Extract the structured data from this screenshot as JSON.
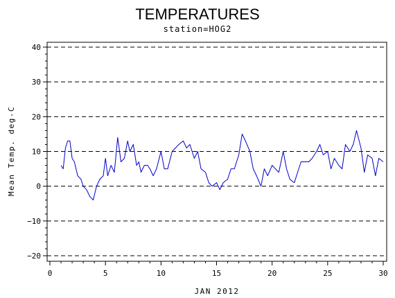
{
  "chart_data": {
    "type": "line",
    "title": "TEMPERATURES",
    "subtitle": "station=HOG2",
    "xlabel": "JAN 2012",
    "ylabel": "Mean Temp. deg-C",
    "xlim": [
      0,
      30
    ],
    "ylim": [
      -20,
      40
    ],
    "x_ticks": [
      0,
      5,
      10,
      15,
      20,
      25,
      30
    ],
    "y_ticks": [
      -20,
      -10,
      0,
      10,
      20,
      30,
      40
    ],
    "grid": "horizontal-dashed",
    "line_color": "#0000cc",
    "series": [
      {
        "x": [
          1.0,
          1.2,
          1.4,
          1.6,
          1.8,
          2.0,
          2.2,
          2.5,
          2.8,
          3.0,
          3.3,
          3.6,
          3.9,
          4.2,
          4.5,
          4.8,
          5.0,
          5.2,
          5.5,
          5.8,
          6.1,
          6.4,
          6.7,
          7.0,
          7.2,
          7.5,
          7.8,
          8.0,
          8.2,
          8.5,
          8.8,
          9.0,
          9.3,
          9.6,
          10.0,
          10.3,
          10.6,
          11.0,
          11.3,
          11.6,
          12.0,
          12.3,
          12.6,
          13.0,
          13.3,
          13.6,
          14.0,
          14.3,
          14.6,
          15.0,
          15.3,
          15.6,
          16.0,
          16.3,
          16.6,
          17.0,
          17.3,
          17.6,
          18.0,
          18.3,
          18.6,
          19.0,
          19.3,
          19.6,
          20.0,
          20.3,
          20.6,
          21.0,
          21.3,
          21.6,
          22.0,
          22.3,
          22.6,
          23.0,
          23.3,
          23.6,
          24.0,
          24.3,
          24.6,
          25.0,
          25.3,
          25.6,
          26.0,
          26.3,
          26.6,
          27.0,
          27.3,
          27.6,
          28.0,
          28.3,
          28.6,
          29.0,
          29.3,
          29.6,
          30.0
        ],
        "values": [
          6,
          5,
          11,
          13,
          13,
          8,
          7,
          3,
          2,
          0,
          -1,
          -3,
          -4,
          0,
          2,
          3,
          8,
          3,
          6,
          4,
          14,
          7,
          8,
          13,
          10,
          12,
          6,
          7,
          4,
          6,
          6,
          5,
          3,
          5,
          10,
          5,
          5,
          10,
          11,
          12,
          13,
          11,
          12,
          8,
          10,
          5,
          4,
          1,
          0,
          1,
          -1,
          1,
          2,
          5,
          5,
          9,
          15,
          13,
          10,
          5,
          3,
          0,
          5,
          3,
          6,
          5,
          4,
          10,
          5,
          2,
          1,
          4,
          7,
          7,
          7,
          8,
          10,
          12,
          9,
          10,
          5,
          8,
          6,
          5,
          12,
          10,
          12,
          16,
          11,
          4,
          9,
          8,
          3,
          8,
          7
        ]
      }
    ]
  }
}
